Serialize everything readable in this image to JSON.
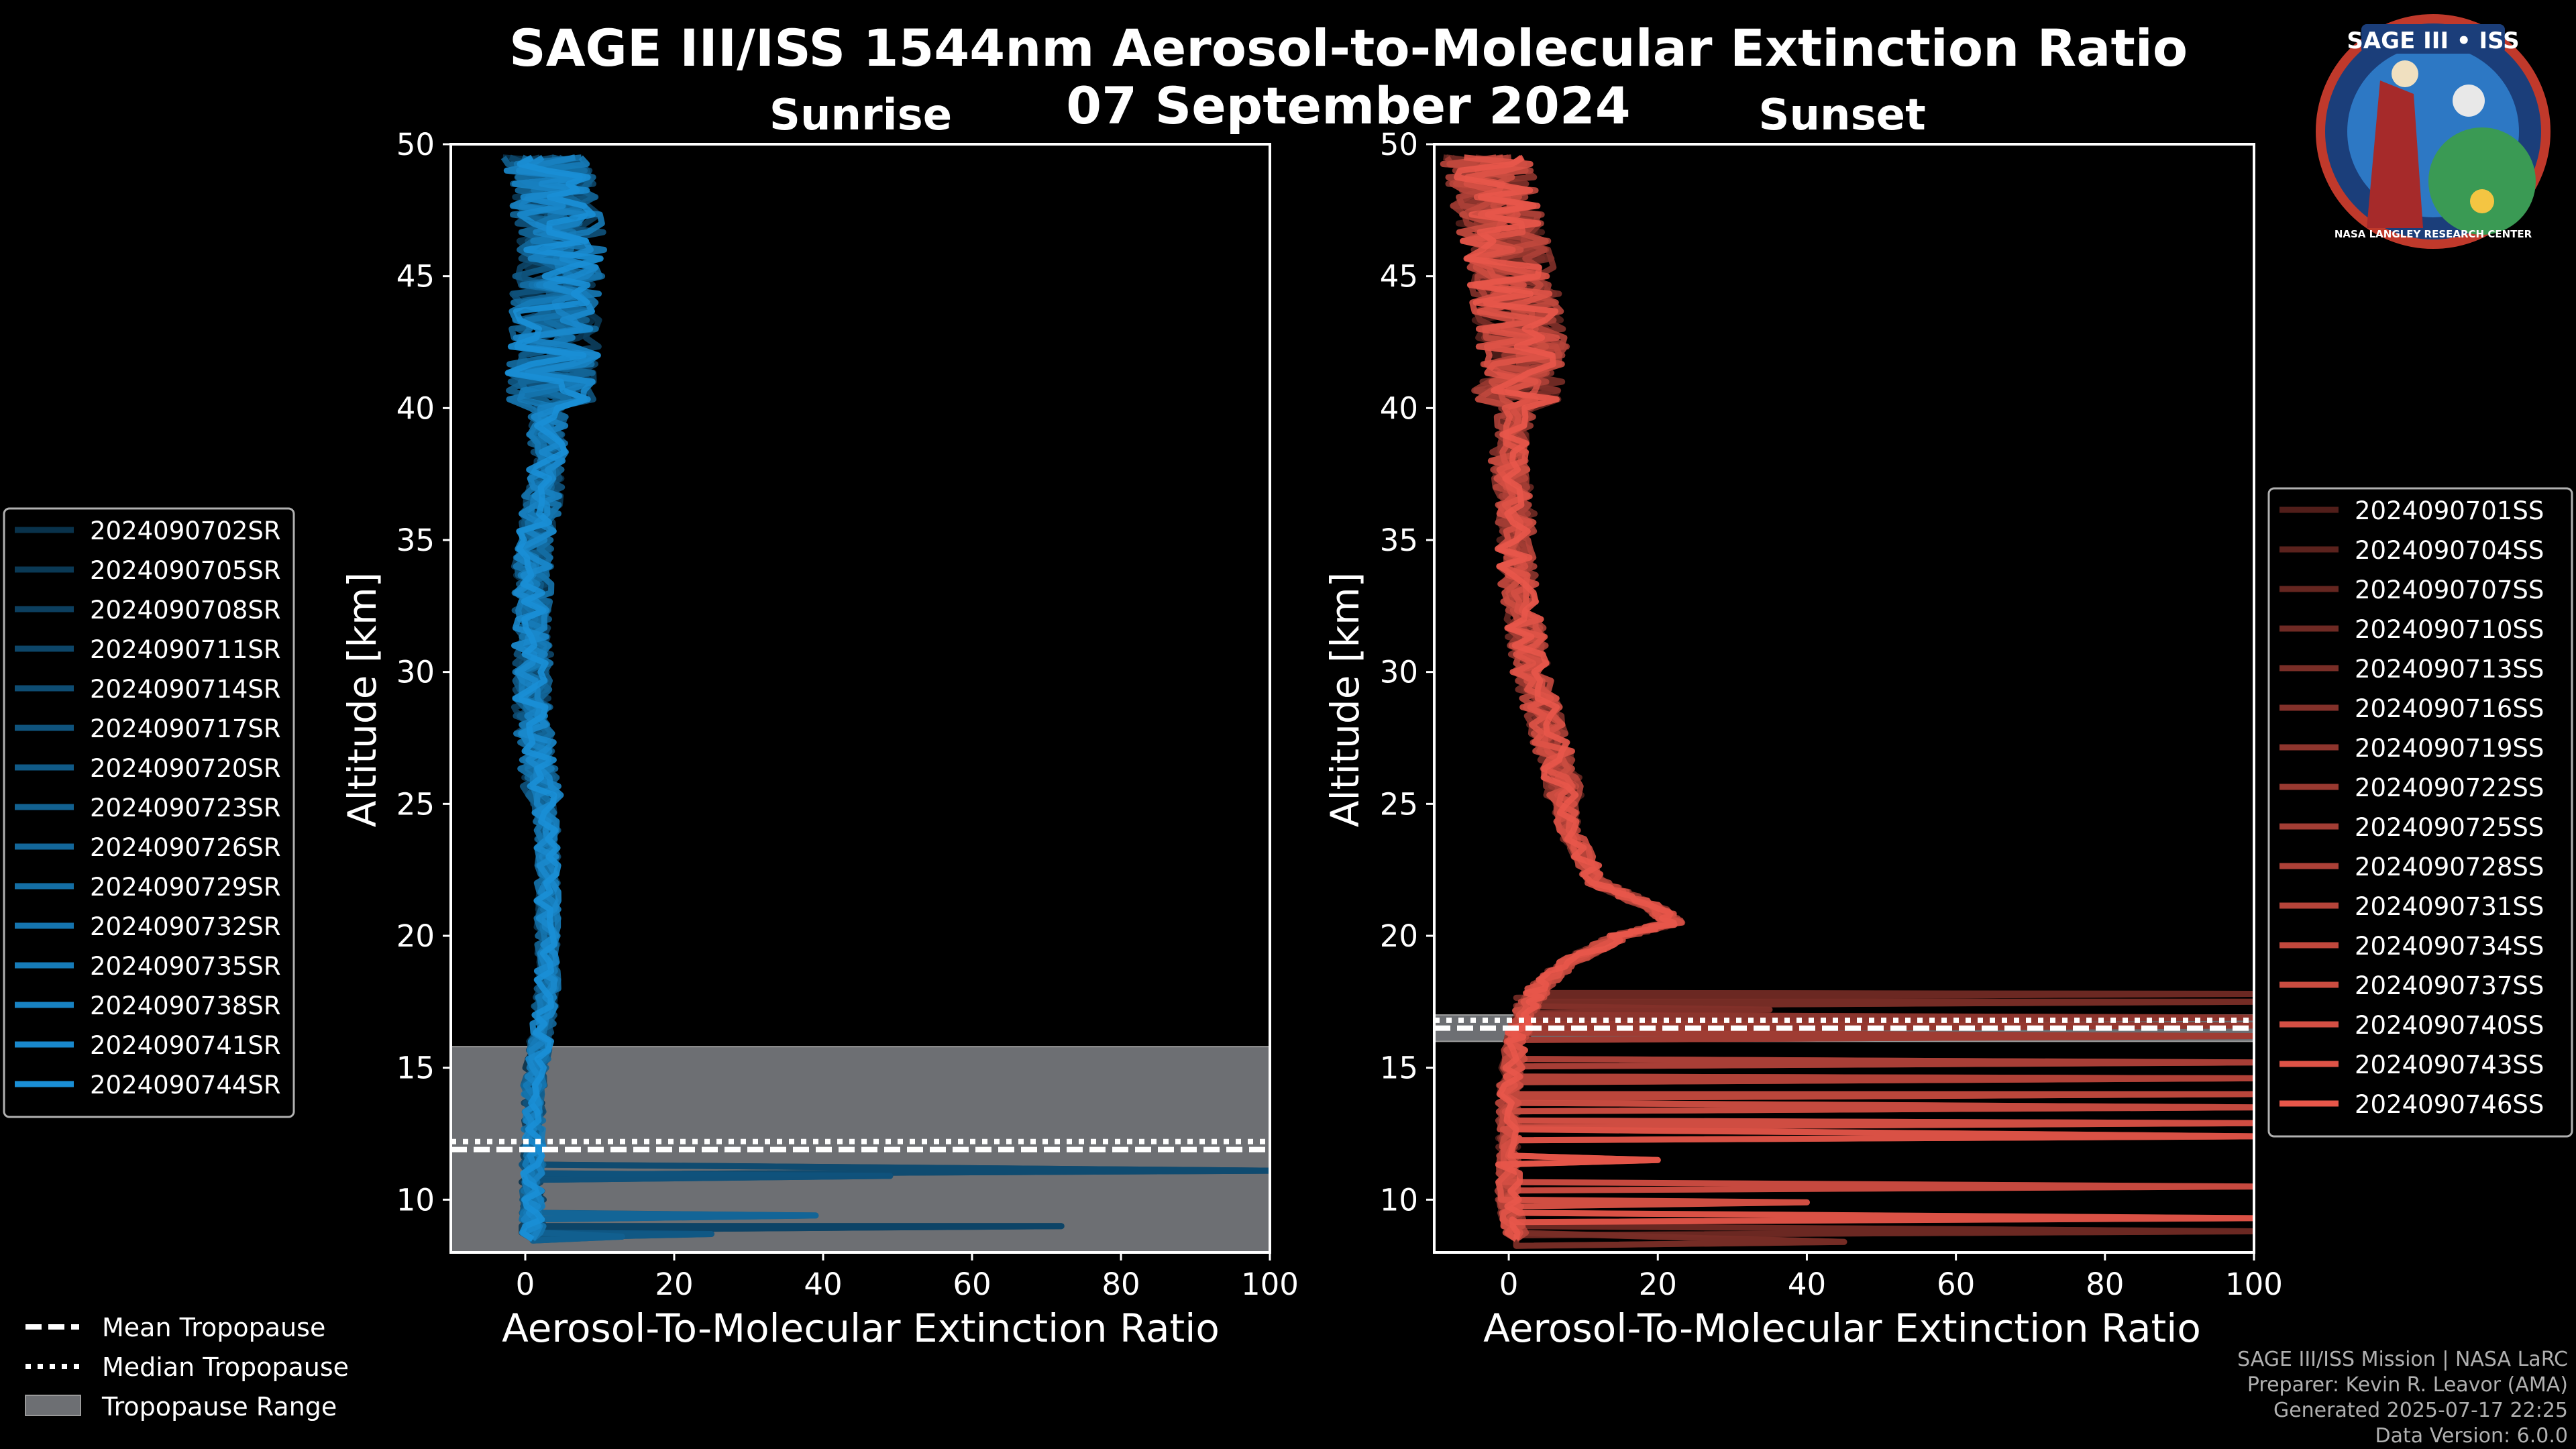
{
  "title": "SAGE III/ISS 1544nm Aerosol-to-Molecular Extinction Ratio",
  "date": "07 September 2024",
  "logo": {
    "text": "SAGE III • ISS",
    "ring_text": "NASA LANGLEY RESEARCH CENTER"
  },
  "credits": {
    "line1": "SAGE III/ISS Mission | NASA LaRC",
    "line2": "Preparer: Kevin R. Leavor (AMA)",
    "line3": "Generated 2025-07-17 22:25",
    "line4": "Data Version: 6.0.0"
  },
  "bottom_legend": {
    "mean": "Mean Tropopause",
    "median": "Median Tropopause",
    "range": "Tropopause Range"
  },
  "colors": {
    "sunrise": "#1a8fd6",
    "sunset": "#e8574a",
    "tropo_band": "#6d6f73"
  },
  "chart_data": [
    {
      "type": "line",
      "panel": "sunrise",
      "title": "Sunrise",
      "xlabel": "Aerosol-To-Molecular Extinction Ratio",
      "ylabel": "Altitude [km]",
      "xlim": [
        -10,
        100
      ],
      "ylim": [
        8,
        50
      ],
      "xticks": [
        0,
        20,
        40,
        60,
        80,
        100
      ],
      "yticks": [
        10,
        15,
        20,
        25,
        30,
        35,
        40,
        45,
        50
      ],
      "legend": [
        "2024090702SR",
        "2024090705SR",
        "2024090708SR",
        "2024090711SR",
        "2024090714SR",
        "2024090717SR",
        "2024090720SR",
        "2024090723SR",
        "2024090726SR",
        "2024090729SR",
        "2024090732SR",
        "2024090735SR",
        "2024090738SR",
        "2024090741SR",
        "2024090744SR"
      ],
      "tropopause": {
        "range": [
          8,
          15.8
        ],
        "mean": 11.9,
        "median": 12.2
      },
      "base_profile": [
        [
          49.5,
          3
        ],
        [
          48,
          4
        ],
        [
          46,
          5
        ],
        [
          44,
          4
        ],
        [
          42,
          4
        ],
        [
          40,
          3
        ],
        [
          38,
          3
        ],
        [
          36,
          2
        ],
        [
          34,
          1
        ],
        [
          32,
          1
        ],
        [
          30,
          1
        ],
        [
          28,
          1
        ],
        [
          26,
          2
        ],
        [
          24,
          3
        ],
        [
          22,
          3
        ],
        [
          20,
          3
        ],
        [
          18,
          3
        ],
        [
          16,
          2
        ],
        [
          14,
          1
        ],
        [
          12,
          1
        ],
        [
          10,
          1
        ],
        [
          8.5,
          1
        ]
      ],
      "spikes": [
        {
          "alt": 9.0,
          "value": 72
        },
        {
          "alt": 11.1,
          "value": 100
        },
        {
          "alt": 10.9,
          "value": 49
        },
        {
          "alt": 8.7,
          "value": 25
        },
        {
          "alt": 8.6,
          "value": 13
        },
        {
          "alt": 9.4,
          "value": 39
        }
      ]
    },
    {
      "type": "line",
      "panel": "sunset",
      "title": "Sunset",
      "xlabel": "Aerosol-To-Molecular Extinction Ratio",
      "ylabel": "Altitude [km]",
      "xlim": [
        -10,
        100
      ],
      "ylim": [
        8,
        50
      ],
      "xticks": [
        0,
        20,
        40,
        60,
        80,
        100
      ],
      "yticks": [
        10,
        15,
        20,
        25,
        30,
        35,
        40,
        45,
        50
      ],
      "legend": [
        "2024090701SS",
        "2024090704SS",
        "2024090707SS",
        "2024090710SS",
        "2024090713SS",
        "2024090716SS",
        "2024090719SS",
        "2024090722SS",
        "2024090725SS",
        "2024090728SS",
        "2024090731SS",
        "2024090734SS",
        "2024090737SS",
        "2024090740SS",
        "2024090743SS",
        "2024090746SS"
      ],
      "tropopause": {
        "range": [
          16.0,
          17.0
        ],
        "mean": 16.5,
        "median": 16.8
      },
      "base_profile": [
        [
          49.5,
          -3
        ],
        [
          48,
          -2
        ],
        [
          46,
          0
        ],
        [
          44,
          1
        ],
        [
          42,
          2
        ],
        [
          40,
          1
        ],
        [
          38,
          0
        ],
        [
          36,
          1
        ],
        [
          34,
          1
        ],
        [
          32,
          2
        ],
        [
          30,
          3
        ],
        [
          28,
          5
        ],
        [
          26,
          7
        ],
        [
          24,
          8
        ],
        [
          22,
          12
        ],
        [
          21,
          20
        ],
        [
          20.5,
          22
        ],
        [
          20,
          15
        ],
        [
          19,
          8
        ],
        [
          18,
          4
        ],
        [
          17,
          2
        ],
        [
          16,
          1
        ],
        [
          14,
          0
        ],
        [
          12,
          0
        ],
        [
          10,
          0
        ],
        [
          8.5,
          1
        ]
      ],
      "spikes": [
        {
          "alt": 17.8,
          "value": 100
        },
        {
          "alt": 17.5,
          "value": 100
        },
        {
          "alt": 17.2,
          "value": 35
        },
        {
          "alt": 16.9,
          "value": 100
        },
        {
          "alt": 16.6,
          "value": 100
        },
        {
          "alt": 16.2,
          "value": 100
        },
        {
          "alt": 15.2,
          "value": 100
        },
        {
          "alt": 14.6,
          "value": 100
        },
        {
          "alt": 14.0,
          "value": 100
        },
        {
          "alt": 13.5,
          "value": 100
        },
        {
          "alt": 12.9,
          "value": 100
        },
        {
          "alt": 12.4,
          "value": 100
        },
        {
          "alt": 11.5,
          "value": 20
        },
        {
          "alt": 10.5,
          "value": 100
        },
        {
          "alt": 9.9,
          "value": 40
        },
        {
          "alt": 9.3,
          "value": 100
        },
        {
          "alt": 8.8,
          "value": 100
        },
        {
          "alt": 8.4,
          "value": 45
        }
      ]
    }
  ]
}
